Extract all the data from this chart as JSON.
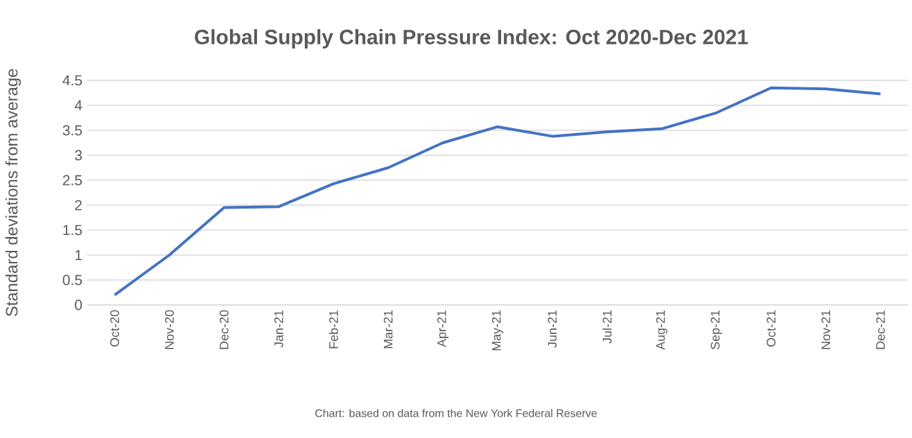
{
  "chart_data": {
    "type": "line",
    "title": "Global Supply Chain Pressure Index: Oct 2020-Dec 2021",
    "ylabel": "Standard deviations from average",
    "categories": [
      "Oct-20",
      "Nov-20",
      "Dec-20",
      "Jan-21",
      "Feb-21",
      "Mar-21",
      "Apr-21",
      "May-21",
      "Jun-21",
      "Jul-21",
      "Aug-21",
      "Sep-21",
      "Oct-21",
      "Nov-21",
      "Dec-21"
    ],
    "series": [
      {
        "color": "#4472c4",
        "values": [
          0.2,
          1.0,
          1.95,
          1.97,
          2.43,
          2.75,
          3.25,
          3.57,
          3.38,
          3.47,
          3.53,
          3.85,
          4.35,
          4.33,
          4.23
        ]
      }
    ],
    "ylim": [
      0,
      4.5
    ],
    "yticks": [
      0,
      0.5,
      1,
      1.5,
      2,
      2.5,
      3,
      3.5,
      4,
      4.5
    ],
    "grid": "y",
    "marker": "none",
    "line_style": "solid",
    "annotations": [
      "Chart: based on data from the New York Federal Reserve"
    ]
  }
}
